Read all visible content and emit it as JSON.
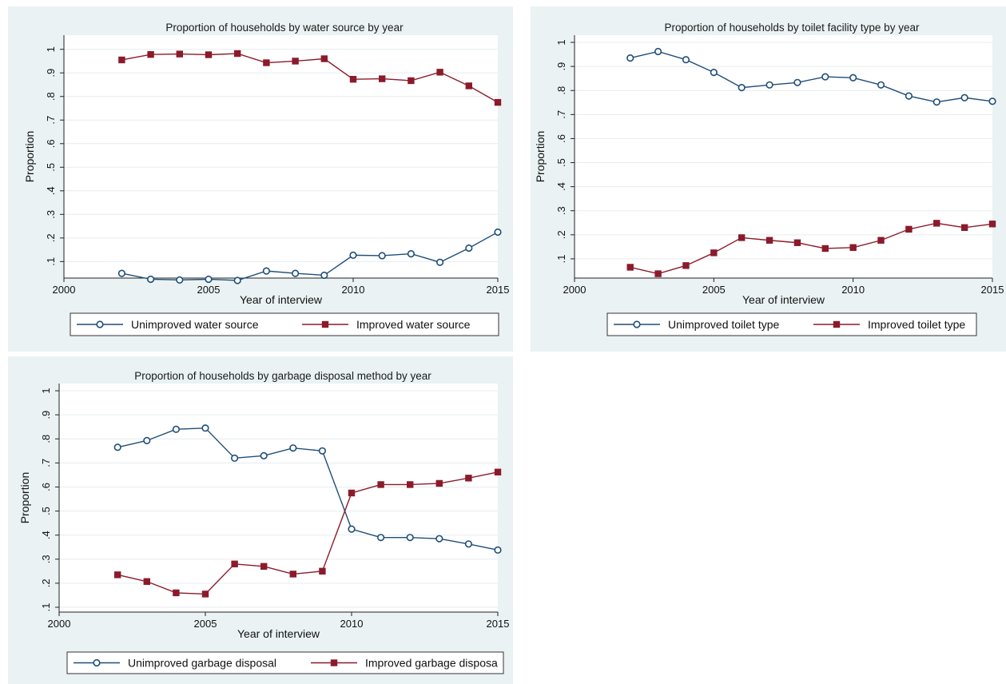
{
  "colors": {
    "panel_bg": "#eaf2f3",
    "plot_bg": "#ffffff",
    "grid": "#e6ecee",
    "unimproved": "#1f4e79",
    "improved": "#8b1a2b"
  },
  "chart_data": [
    {
      "type": "line",
      "title": "Proportion of households by water source by year",
      "xlabel": "Year of interview",
      "ylabel": "Proportion",
      "xlim": [
        2000,
        2015
      ],
      "ylim": [
        0.03,
        1.06
      ],
      "xticks": [
        2000,
        2005,
        2010,
        2015
      ],
      "yticks": [
        0.1,
        0.2,
        0.3,
        0.4,
        0.5,
        0.6,
        0.7,
        0.8,
        0.9,
        1
      ],
      "ytick_labels": [
        ".1",
        ".2",
        ".3",
        ".4",
        ".5",
        ".6",
        ".7",
        ".8",
        ".9",
        "1"
      ],
      "x": [
        2002,
        2003,
        2004,
        2005,
        2006,
        2007,
        2008,
        2009,
        2010,
        2011,
        2012,
        2013,
        2014,
        2015
      ],
      "grid": true,
      "legend_position": "bottom",
      "series": [
        {
          "name": "Unimproved water source",
          "marker": "circle",
          "values": [
            0.05,
            0.025,
            0.022,
            0.025,
            0.02,
            0.06,
            0.05,
            0.042,
            0.127,
            0.125,
            0.133,
            0.097,
            0.157,
            0.225
          ]
        },
        {
          "name": "Improved water source",
          "marker": "square",
          "values": [
            0.955,
            0.978,
            0.98,
            0.977,
            0.982,
            0.943,
            0.95,
            0.96,
            0.873,
            0.875,
            0.867,
            0.903,
            0.845,
            0.775
          ]
        }
      ]
    },
    {
      "type": "line",
      "title": "Proportion of households by toilet facility type by year",
      "xlabel": "Year of interview",
      "ylabel": "Proportion",
      "xlim": [
        2000,
        2015
      ],
      "ylim": [
        0.02,
        1.03
      ],
      "xticks": [
        2000,
        2005,
        2010,
        2015
      ],
      "yticks": [
        0.1,
        0.2,
        0.3,
        0.4,
        0.5,
        0.6,
        0.7,
        0.8,
        0.9,
        1
      ],
      "ytick_labels": [
        ".1",
        ".2",
        ".3",
        ".4",
        ".5",
        ".6",
        ".7",
        ".8",
        ".9",
        "1"
      ],
      "x": [
        2002,
        2003,
        2004,
        2005,
        2006,
        2007,
        2008,
        2009,
        2010,
        2011,
        2012,
        2013,
        2014,
        2015
      ],
      "grid": true,
      "legend_position": "bottom",
      "series": [
        {
          "name": "Unimproved toilet type",
          "marker": "circle",
          "values": [
            0.935,
            0.962,
            0.928,
            0.875,
            0.812,
            0.823,
            0.833,
            0.857,
            0.853,
            0.823,
            0.777,
            0.752,
            0.77,
            0.755
          ]
        },
        {
          "name": "Improved toilet type",
          "marker": "square",
          "values": [
            0.065,
            0.038,
            0.072,
            0.125,
            0.188,
            0.177,
            0.167,
            0.143,
            0.147,
            0.177,
            0.223,
            0.248,
            0.23,
            0.245
          ]
        }
      ]
    },
    {
      "type": "line",
      "title": "Proportion of households by garbage disposal method by year",
      "xlabel": "Year of interview",
      "ylabel": "Proportion",
      "xlim": [
        2000,
        2015
      ],
      "ylim": [
        0.08,
        1.03
      ],
      "xticks": [
        2000,
        2005,
        2010,
        2015
      ],
      "yticks": [
        0.1,
        0.2,
        0.3,
        0.4,
        0.5,
        0.6,
        0.7,
        0.8,
        0.9,
        1
      ],
      "ytick_labels": [
        ".1",
        ".2",
        ".3",
        ".4",
        ".5",
        ".6",
        ".7",
        ".8",
        ".9",
        "1"
      ],
      "x": [
        2002,
        2003,
        2004,
        2005,
        2006,
        2007,
        2008,
        2009,
        2010,
        2011,
        2012,
        2013,
        2014,
        2015
      ],
      "grid": true,
      "legend_position": "bottom",
      "series": [
        {
          "name": "Unimproved garbage disposal",
          "marker": "circle",
          "values": [
            0.765,
            0.793,
            0.84,
            0.845,
            0.72,
            0.73,
            0.762,
            0.75,
            0.425,
            0.39,
            0.39,
            0.385,
            0.363,
            0.338
          ]
        },
        {
          "name": "Improved garbage disposa",
          "marker": "square",
          "values": [
            0.235,
            0.207,
            0.16,
            0.155,
            0.28,
            0.27,
            0.238,
            0.25,
            0.575,
            0.61,
            0.61,
            0.615,
            0.637,
            0.662
          ]
        }
      ]
    }
  ]
}
